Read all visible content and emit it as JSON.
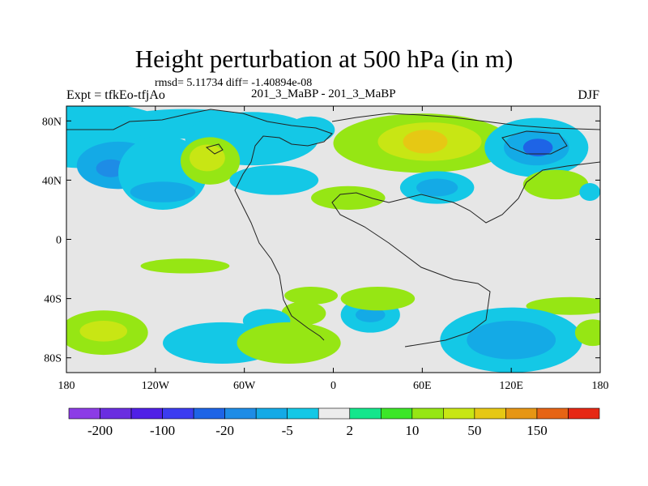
{
  "title": "Height perturbation at 500 hPa (in m)",
  "stats": "rmsd= 5.11734 diff= -1.40894e-08",
  "left_label": "Expt = tfkEo-tfjAo",
  "center_label": "201_3_MaBP - 201_3_MaBP",
  "right_label": "DJF",
  "chart_data": {
    "type": "heatmap",
    "title": "Height perturbation at 500 hPa (in m)",
    "x_range": [
      -180,
      180
    ],
    "y_range": [
      -90,
      90
    ],
    "x_ticks": [
      {
        "value": -180,
        "label": "180"
      },
      {
        "value": -120,
        "label": "120W"
      },
      {
        "value": -60,
        "label": "60W"
      },
      {
        "value": 0,
        "label": "0"
      },
      {
        "value": 60,
        "label": "60E"
      },
      {
        "value": 120,
        "label": "120E"
      },
      {
        "value": 180,
        "label": "180"
      }
    ],
    "y_ticks": [
      {
        "value": 80,
        "label": "80N"
      },
      {
        "value": 40,
        "label": "40N"
      },
      {
        "value": 0,
        "label": "0"
      },
      {
        "value": -40,
        "label": "40S"
      },
      {
        "value": -80,
        "label": "80S"
      }
    ],
    "background_color": "#e6e6e6",
    "colorbar": {
      "colors": [
        "#8c3ce6",
        "#6a2ee0",
        "#5020e6",
        "#3c3cf0",
        "#1e64e6",
        "#1e8ce6",
        "#14aae6",
        "#14c8e6",
        "#ececec",
        "#14e68c",
        "#3ce628",
        "#96e614",
        "#c8e614",
        "#e6c814",
        "#e69614",
        "#e66414",
        "#e62814"
      ],
      "labels": [
        {
          "index": 1,
          "text": "-200"
        },
        {
          "index": 3,
          "text": "-100"
        },
        {
          "index": 5,
          "text": "-20"
        },
        {
          "index": 7,
          "text": "-5"
        },
        {
          "index": 9,
          "text": "2"
        },
        {
          "index": 11,
          "text": "10"
        },
        {
          "index": 13,
          "text": "50"
        },
        {
          "index": 15,
          "text": "150"
        }
      ]
    },
    "regions": [
      {
        "level": 7,
        "lon": -165,
        "lat": 70,
        "rlon": 60,
        "rlat": 22
      },
      {
        "level": 6,
        "lon": -145,
        "lat": 50,
        "rlon": 28,
        "rlat": 16
      },
      {
        "level": 5,
        "lon": -150,
        "lat": 48,
        "rlon": 10,
        "rlat": 6
      },
      {
        "level": 7,
        "lon": -115,
        "lat": 45,
        "rlon": 30,
        "rlat": 25
      },
      {
        "level": 7,
        "lon": -100,
        "lat": 78,
        "rlon": 50,
        "rlat": 10
      },
      {
        "level": 7,
        "lon": -55,
        "lat": 68,
        "rlon": 45,
        "rlat": 18
      },
      {
        "level": 6,
        "lon": -115,
        "lat": 32,
        "rlon": 22,
        "rlat": 7
      },
      {
        "level": 11,
        "lon": -83,
        "lat": 53,
        "rlon": 20,
        "rlat": 16
      },
      {
        "level": 12,
        "lon": -85,
        "lat": 55,
        "rlon": 12,
        "rlat": 9
      },
      {
        "level": 7,
        "lon": -40,
        "lat": 40,
        "rlon": 30,
        "rlat": 10
      },
      {
        "level": 7,
        "lon": -15,
        "lat": 74,
        "rlon": 16,
        "rlat": 9
      },
      {
        "level": 11,
        "lon": 60,
        "lat": 65,
        "rlon": 60,
        "rlat": 20
      },
      {
        "level": 12,
        "lon": 65,
        "lat": 66,
        "rlon": 35,
        "rlat": 13
      },
      {
        "level": 13,
        "lon": 62,
        "lat": 66,
        "rlon": 15,
        "rlat": 8
      },
      {
        "level": 7,
        "lon": 137,
        "lat": 62,
        "rlon": 35,
        "rlat": 20
      },
      {
        "level": 6,
        "lon": 137,
        "lat": 62,
        "rlon": 22,
        "rlat": 12
      },
      {
        "level": 4,
        "lon": 138,
        "lat": 62,
        "rlon": 10,
        "rlat": 6
      },
      {
        "level": 11,
        "lon": 150,
        "lat": 37,
        "rlon": 22,
        "rlat": 10
      },
      {
        "level": 7,
        "lon": 70,
        "lat": 35,
        "rlon": 25,
        "rlat": 11
      },
      {
        "level": 6,
        "lon": 70,
        "lat": 35,
        "rlon": 14,
        "rlat": 6
      },
      {
        "level": 11,
        "lon": 10,
        "lat": 28,
        "rlon": 25,
        "rlat": 8
      },
      {
        "level": 7,
        "lon": 173,
        "lat": 32,
        "rlon": 7,
        "rlat": 6
      },
      {
        "level": 11,
        "lon": -100,
        "lat": -18,
        "rlon": 30,
        "rlat": 5
      },
      {
        "level": 11,
        "lon": -15,
        "lat": -38,
        "rlon": 18,
        "rlat": 6
      },
      {
        "level": 11,
        "lon": -20,
        "lat": -50,
        "rlon": 15,
        "rlat": 8
      },
      {
        "level": 7,
        "lon": -45,
        "lat": -55,
        "rlon": 16,
        "rlat": 8
      },
      {
        "level": 7,
        "lon": 25,
        "lat": -51,
        "rlon": 20,
        "rlat": 12
      },
      {
        "level": 6,
        "lon": 25,
        "lat": -51,
        "rlon": 10,
        "rlat": 5
      },
      {
        "level": 11,
        "lon": 30,
        "lat": -40,
        "rlon": 25,
        "rlat": 8
      },
      {
        "level": 11,
        "lon": 160,
        "lat": -45,
        "rlon": 30,
        "rlat": 6
      },
      {
        "level": 11,
        "lon": -155,
        "lat": -63,
        "rlon": 30,
        "rlat": 15
      },
      {
        "level": 12,
        "lon": -155,
        "lat": -62,
        "rlon": 16,
        "rlat": 7
      },
      {
        "level": 7,
        "lon": -75,
        "lat": -70,
        "rlon": 40,
        "rlat": 14
      },
      {
        "level": 11,
        "lon": -30,
        "lat": -70,
        "rlon": 35,
        "rlat": 14
      },
      {
        "level": 7,
        "lon": 120,
        "lat": -68,
        "rlon": 48,
        "rlat": 22
      },
      {
        "level": 6,
        "lon": 120,
        "lat": -68,
        "rlon": 30,
        "rlat": 13
      },
      {
        "level": 11,
        "lon": 175,
        "lat": -63,
        "rlon": 12,
        "rlat": 9
      }
    ]
  }
}
